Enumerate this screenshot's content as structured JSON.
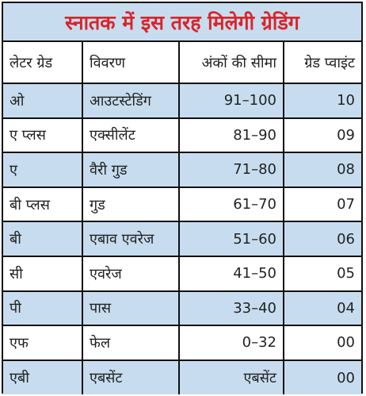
{
  "title": "स्नातक में इस तरह मिलेगी ग्रेडिंग",
  "table": {
    "header": [
      "लेटर ग्रेड",
      "विवरण",
      "अंकों की सीमा",
      "ग्रेड प्वाइंट"
    ],
    "rows": [
      [
        "ओ",
        "आउटस्टेडिंग",
        "91–100",
        "10"
      ],
      [
        "ए प्लस",
        "एक्सीलेंट",
        "81–90",
        "09"
      ],
      [
        "ए",
        "वैरी गुड",
        "71–80",
        "08"
      ],
      [
        "बी प्लस",
        "गुड",
        "61–70",
        "07"
      ],
      [
        "बी",
        "एबाव एवरेज",
        "51–60",
        "06"
      ],
      [
        "सी",
        "एवरेज",
        "41–50",
        "05"
      ],
      [
        "पी",
        "पास",
        "33–40",
        "04"
      ],
      [
        "एफ",
        "फेल",
        "0–32",
        "00"
      ],
      [
        "एबी",
        "एबसेंट",
        "एबसेंट",
        "00"
      ]
    ]
  }
}
